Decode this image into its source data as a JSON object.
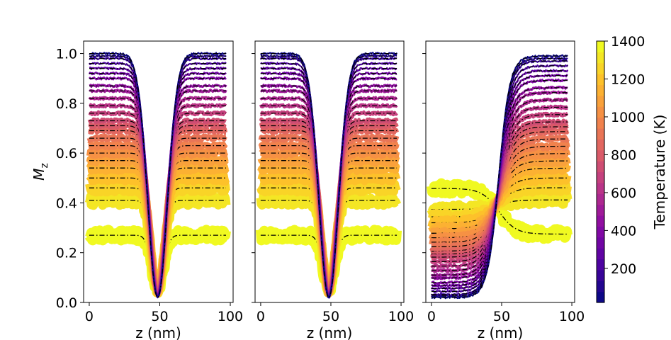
{
  "chart_data": {
    "type": "line",
    "description_series": "Magnetization profiles M_z(z) at increasing temperature; markers = simulation, dash-dot = fit",
    "temperatures": [
      20,
      80,
      140,
      200,
      260,
      320,
      380,
      440,
      500,
      560,
      620,
      680,
      740,
      800,
      860,
      920,
      980,
      1040,
      1100,
      1160,
      1220,
      1280,
      1340,
      1400
    ],
    "plateau_values": [
      1.0,
      0.99,
      0.98,
      0.96,
      0.94,
      0.92,
      0.9,
      0.87,
      0.85,
      0.82,
      0.79,
      0.76,
      0.73,
      0.71,
      0.69,
      0.66,
      0.63,
      0.6,
      0.57,
      0.54,
      0.5,
      0.46,
      0.41,
      0.27
    ],
    "panels": [
      {
        "id": "left",
        "profile": "valley",
        "xlabel": "z (nm)",
        "ylabel": "M",
        "ylabel_sub": "z",
        "xlim": [
          -4,
          102
        ],
        "ylim": [
          0,
          1.05
        ],
        "xticks": [
          "0",
          "50",
          "100"
        ],
        "yticks": [
          "0.0",
          "0.2",
          "0.4",
          "0.6",
          "0.8",
          "1.0"
        ]
      },
      {
        "id": "middle",
        "profile": "valley",
        "xlabel": "z (nm)",
        "xlim": [
          -4,
          102
        ],
        "ylim": [
          0,
          1.05
        ],
        "xticks": [
          "0",
          "50",
          "100"
        ],
        "yticks": []
      },
      {
        "id": "right",
        "profile": "step",
        "xlabel": "z (nm)",
        "xlim": [
          -4,
          102
        ],
        "ylim": [
          0,
          1.05
        ],
        "xticks": [
          "0",
          "50",
          "100"
        ],
        "yticks": []
      }
    ],
    "colorbar": {
      "label": "Temperature (K)",
      "range": [
        20,
        1400
      ],
      "ticks": [
        "200",
        "400",
        "600",
        "800",
        "1000",
        "1200",
        "1400"
      ],
      "tick_values": [
        200,
        400,
        600,
        800,
        1000,
        1200,
        1400
      ],
      "colormap": "plasma"
    }
  }
}
